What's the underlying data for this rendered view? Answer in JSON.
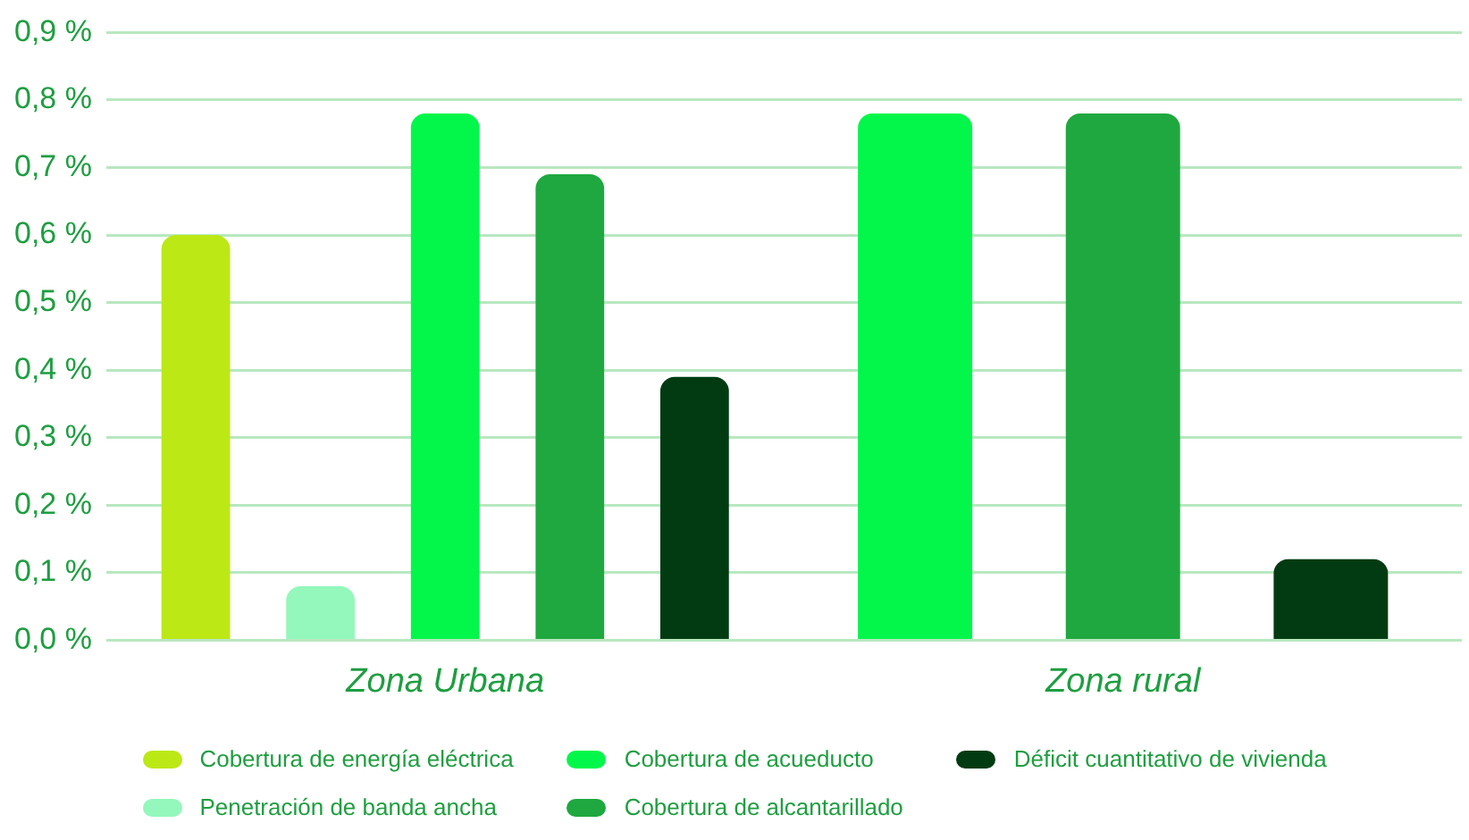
{
  "chart_data": {
    "type": "bar",
    "categories": [
      "Zona Urbana",
      "Zona rural"
    ],
    "series": [
      {
        "name": "Cobertura de energía eléctrica",
        "color": "#bce815",
        "values": [
          0.6,
          null
        ]
      },
      {
        "name": "Penetración de banda ancha",
        "color": "#94f7bb",
        "values": [
          0.08,
          null
        ]
      },
      {
        "name": "Cobertura de acueducto",
        "color": "#02f74a",
        "values": [
          0.78,
          0.78
        ]
      },
      {
        "name": "Cobertura de alcantarillado",
        "color": "#1fa83f",
        "values": [
          0.69,
          0.78
        ]
      },
      {
        "name": "Déficit cuantitativo de vivienda",
        "color": "#023b12",
        "values": [
          0.39,
          0.12
        ]
      }
    ],
    "ylim": [
      0,
      0.9
    ],
    "yticks": [
      {
        "value": 0,
        "label": "0,0 %"
      },
      {
        "value": 0.1,
        "label": "0,1 %"
      },
      {
        "value": 0.2,
        "label": "0,2 %"
      },
      {
        "value": 0.3,
        "label": "0,3 %"
      },
      {
        "value": 0.4,
        "label": "0,4 %"
      },
      {
        "value": 0.5,
        "label": "0,5 %"
      },
      {
        "value": 0.6,
        "label": "0,6 %"
      },
      {
        "value": 0.7,
        "label": "0,7 %"
      },
      {
        "value": 0.8,
        "label": "0,8 %"
      },
      {
        "value": 0.9,
        "label": "0,9 %"
      }
    ],
    "grid": "y",
    "legend": "bottom"
  }
}
